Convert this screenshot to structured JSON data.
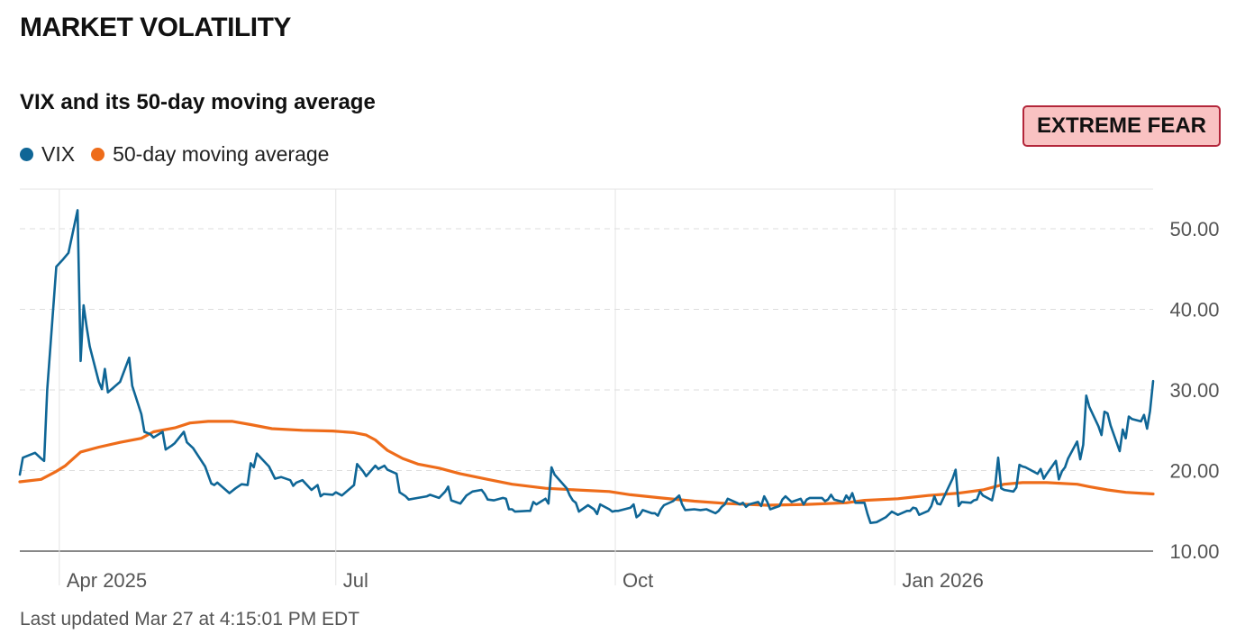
{
  "header": {
    "title": "MARKET VOLATILITY"
  },
  "badge": {
    "label": "EXTREME FEAR",
    "bg_color": "#f9c2c2",
    "border_color": "#b3263a"
  },
  "footer": {
    "last_updated": "Last updated Mar 27 at 4:15:01 PM EDT"
  },
  "chart_data": {
    "type": "line",
    "title": "VIX and its 50-day moving average",
    "xlabel": "",
    "ylabel": "",
    "ylim": [
      10,
      50
    ],
    "xlim": [
      "2025-03-19",
      "2026-03-27"
    ],
    "yticks": [
      10,
      20,
      30,
      40,
      50
    ],
    "ytick_labels": [
      "10.00",
      "20.00",
      "30.00",
      "40.00",
      "50.00"
    ],
    "xticks": [
      {
        "date": "2025-04-01",
        "label": "Apr 2025"
      },
      {
        "date": "2025-07-01",
        "label": "Jul"
      },
      {
        "date": "2025-10-01",
        "label": "Oct"
      },
      {
        "date": "2026-01-01",
        "label": "Jan 2026"
      }
    ],
    "grid": true,
    "legend_position": "top-left",
    "series": [
      {
        "name": "VIX",
        "color": "#0f6696",
        "points": [
          [
            "2025-03-19",
            19.5
          ],
          [
            "2025-03-20",
            21.6
          ],
          [
            "2025-03-24",
            22.2
          ],
          [
            "2025-03-26",
            21.5
          ],
          [
            "2025-03-27",
            21.2
          ],
          [
            "2025-03-28",
            30
          ],
          [
            "2025-03-31",
            45.3
          ],
          [
            "2025-04-02",
            46.1
          ],
          [
            "2025-04-04",
            47.0
          ],
          [
            "2025-04-07",
            52.3
          ],
          [
            "2025-04-08",
            33.6
          ],
          [
            "2025-04-09",
            40.5
          ],
          [
            "2025-04-10",
            37.8
          ],
          [
            "2025-04-11",
            35.4
          ],
          [
            "2025-04-14",
            31.0
          ],
          [
            "2025-04-15",
            30.1
          ],
          [
            "2025-04-16",
            32.6
          ],
          [
            "2025-04-17",
            29.7
          ],
          [
            "2025-04-21",
            31.0
          ],
          [
            "2025-04-24",
            34.0
          ],
          [
            "2025-04-25",
            30.5
          ],
          [
            "2025-04-28",
            27.0
          ],
          [
            "2025-04-29",
            24.8
          ],
          [
            "2025-05-01",
            24.5
          ],
          [
            "2025-05-02",
            24.1
          ],
          [
            "2025-05-05",
            24.8
          ],
          [
            "2025-05-06",
            22.6
          ],
          [
            "2025-05-08",
            23.1
          ],
          [
            "2025-05-09",
            23.4
          ],
          [
            "2025-05-12",
            24.8
          ],
          [
            "2025-05-13",
            23.5
          ],
          [
            "2025-05-15",
            22.8
          ],
          [
            "2025-05-19",
            20.5
          ],
          [
            "2025-05-21",
            18.4
          ],
          [
            "2025-05-22",
            18.2
          ],
          [
            "2025-05-23",
            18.5
          ],
          [
            "2025-05-27",
            17.2
          ],
          [
            "2025-05-29",
            17.8
          ],
          [
            "2025-05-31",
            18.3
          ],
          [
            "2025-06-02",
            18.2
          ],
          [
            "2025-06-03",
            20.9
          ],
          [
            "2025-06-04",
            20.4
          ],
          [
            "2025-06-05",
            22.1
          ],
          [
            "2025-06-09",
            20.5
          ],
          [
            "2025-06-11",
            19.0
          ],
          [
            "2025-06-13",
            19.2
          ],
          [
            "2025-06-16",
            18.8
          ],
          [
            "2025-06-17",
            18.1
          ],
          [
            "2025-06-18",
            18.5
          ],
          [
            "2025-06-20",
            18.8
          ],
          [
            "2025-06-23",
            17.6
          ],
          [
            "2025-06-25",
            18.2
          ],
          [
            "2025-06-26",
            16.8
          ],
          [
            "2025-06-27",
            17.1
          ],
          [
            "2025-06-30",
            17.0
          ],
          [
            "2025-07-01",
            17.3
          ],
          [
            "2025-07-03",
            16.9
          ],
          [
            "2025-07-07",
            18.2
          ],
          [
            "2025-07-08",
            20.8
          ],
          [
            "2025-07-10",
            19.9
          ],
          [
            "2025-07-11",
            19.3
          ],
          [
            "2025-07-14",
            20.6
          ],
          [
            "2025-07-15",
            20.2
          ],
          [
            "2025-07-17",
            20.6
          ],
          [
            "2025-07-18",
            20.1
          ],
          [
            "2025-07-21",
            19.6
          ],
          [
            "2025-07-22",
            17.3
          ],
          [
            "2025-07-24",
            16.8
          ],
          [
            "2025-07-25",
            16.4
          ],
          [
            "2025-07-28",
            16.6
          ],
          [
            "2025-07-31",
            16.8
          ],
          [
            "2025-08-01",
            17.0
          ],
          [
            "2025-08-04",
            16.6
          ],
          [
            "2025-08-06",
            17.4
          ],
          [
            "2025-08-07",
            18.0
          ],
          [
            "2025-08-08",
            16.3
          ],
          [
            "2025-08-11",
            15.9
          ],
          [
            "2025-08-12",
            16.4
          ],
          [
            "2025-08-13",
            16.9
          ],
          [
            "2025-08-15",
            17.4
          ],
          [
            "2025-08-18",
            17.6
          ],
          [
            "2025-08-19",
            17.1
          ],
          [
            "2025-08-20",
            16.4
          ],
          [
            "2025-08-22",
            16.3
          ],
          [
            "2025-08-25",
            16.6
          ],
          [
            "2025-08-26",
            16.5
          ],
          [
            "2025-08-27",
            15.2
          ],
          [
            "2025-08-28",
            15.2
          ],
          [
            "2025-08-29",
            14.9
          ],
          [
            "2025-09-02",
            15.0
          ],
          [
            "2025-09-03",
            15.0
          ],
          [
            "2025-09-04",
            16.1
          ],
          [
            "2025-09-05",
            15.8
          ],
          [
            "2025-09-08",
            16.5
          ],
          [
            "2025-09-09",
            15.9
          ],
          [
            "2025-09-10",
            20.4
          ],
          [
            "2025-09-11",
            19.5
          ],
          [
            "2025-09-15",
            17.8
          ],
          [
            "2025-09-16",
            16.9
          ],
          [
            "2025-09-17",
            16.3
          ],
          [
            "2025-09-18",
            16.0
          ],
          [
            "2025-09-19",
            14.9
          ],
          [
            "2025-09-22",
            15.7
          ],
          [
            "2025-09-24",
            15.2
          ],
          [
            "2025-09-25",
            14.6
          ],
          [
            "2025-09-26",
            15.8
          ],
          [
            "2025-09-29",
            15.2
          ],
          [
            "2025-09-30",
            14.9
          ],
          [
            "2025-10-01",
            15.0
          ],
          [
            "2025-10-02",
            15.0
          ],
          [
            "2025-10-06",
            15.4
          ],
          [
            "2025-10-07",
            15.8
          ],
          [
            "2025-10-08",
            14.2
          ],
          [
            "2025-10-09",
            14.5
          ],
          [
            "2025-10-10",
            15.1
          ],
          [
            "2025-10-13",
            14.7
          ],
          [
            "2025-10-14",
            14.7
          ],
          [
            "2025-10-15",
            14.4
          ],
          [
            "2025-10-16",
            15.2
          ],
          [
            "2025-10-17",
            15.7
          ],
          [
            "2025-10-20",
            16.2
          ],
          [
            "2025-10-22",
            16.9
          ],
          [
            "2025-10-23",
            15.8
          ],
          [
            "2025-10-24",
            15.1
          ],
          [
            "2025-10-27",
            15.2
          ],
          [
            "2025-10-29",
            15.1
          ],
          [
            "2025-10-31",
            15.2
          ],
          [
            "2025-11-03",
            14.7
          ],
          [
            "2025-11-04",
            15.0
          ],
          [
            "2025-11-05",
            15.5
          ],
          [
            "2025-11-06",
            15.8
          ],
          [
            "2025-11-07",
            16.5
          ],
          [
            "2025-11-10",
            16.0
          ],
          [
            "2025-11-11",
            15.8
          ],
          [
            "2025-11-12",
            16.0
          ],
          [
            "2025-11-13",
            15.5
          ],
          [
            "2025-11-14",
            15.8
          ],
          [
            "2025-11-17",
            16.1
          ],
          [
            "2025-11-18",
            15.6
          ],
          [
            "2025-11-19",
            16.8
          ],
          [
            "2025-11-20",
            16.1
          ],
          [
            "2025-11-21",
            15.2
          ],
          [
            "2025-11-24",
            15.6
          ],
          [
            "2025-11-25",
            16.4
          ],
          [
            "2025-11-26",
            16.8
          ],
          [
            "2025-11-28",
            16.1
          ],
          [
            "2025-12-01",
            16.5
          ],
          [
            "2025-12-02",
            15.8
          ],
          [
            "2025-12-03",
            16.4
          ],
          [
            "2025-12-04",
            16.6
          ],
          [
            "2025-12-05",
            16.6
          ],
          [
            "2025-12-08",
            16.6
          ],
          [
            "2025-12-09",
            16.2
          ],
          [
            "2025-12-10",
            16.4
          ],
          [
            "2025-12-11",
            17.0
          ],
          [
            "2025-12-12",
            16.4
          ],
          [
            "2025-12-15",
            16.1
          ],
          [
            "2025-12-16",
            16.9
          ],
          [
            "2025-12-17",
            16.4
          ],
          [
            "2025-12-18",
            17.2
          ],
          [
            "2025-12-19",
            16.0
          ],
          [
            "2025-12-22",
            16.0
          ]
        ]
      },
      {
        "name": "50-day moving average",
        "color": "#ee6c1a",
        "points": []
      }
    ]
  }
}
